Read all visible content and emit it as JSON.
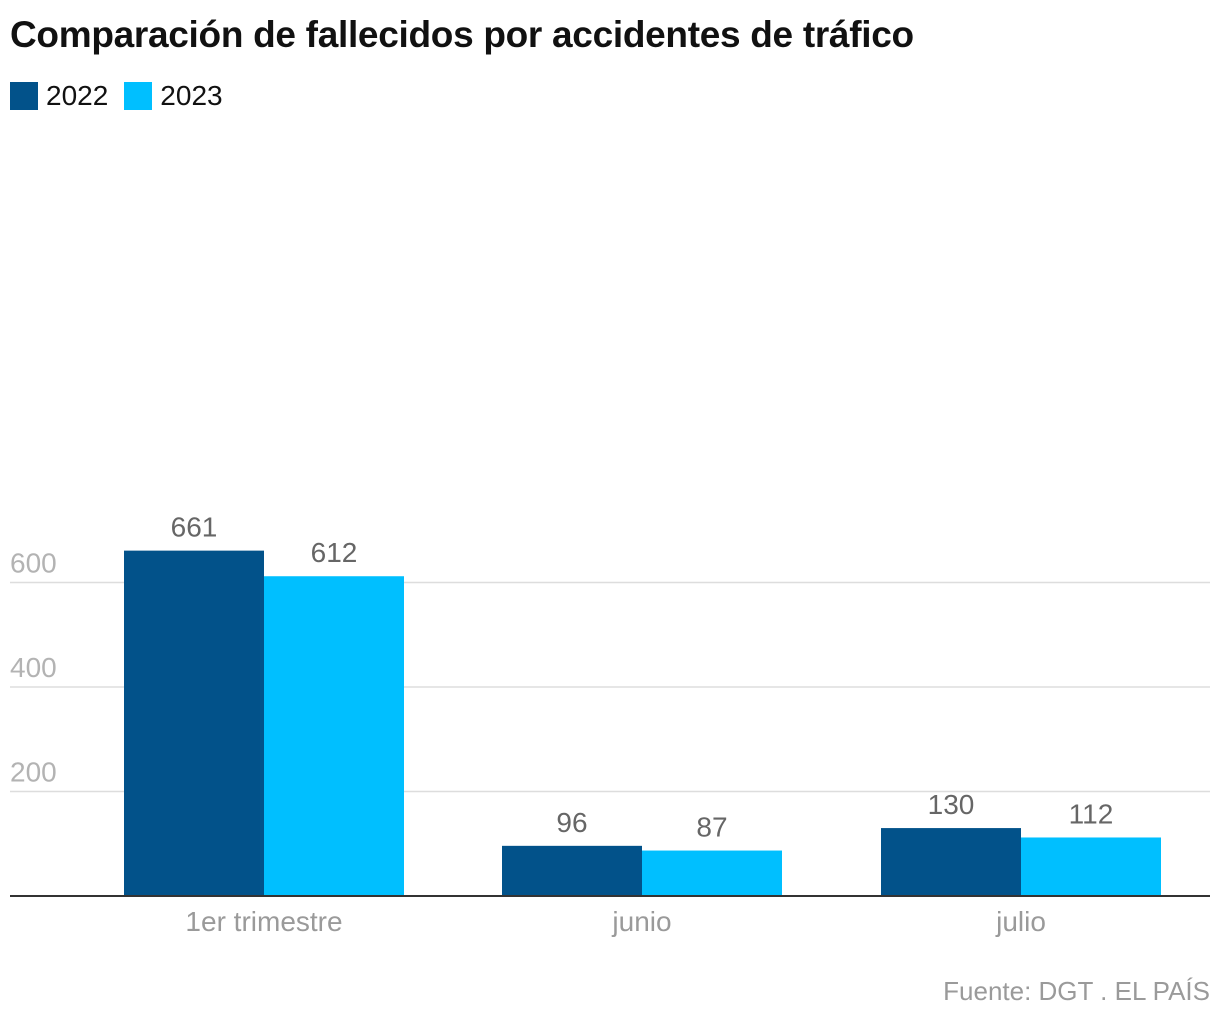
{
  "chart_data": {
    "type": "bar",
    "title": "Comparación de fallecidos por accidentes de tráfico",
    "categories": [
      "1er trimestre",
      "junio",
      "julio"
    ],
    "series": [
      {
        "name": "2022",
        "values": [
          661,
          96,
          130
        ],
        "color": "#02528a"
      },
      {
        "name": "2023",
        "values": [
          612,
          87,
          112
        ],
        "color": "#00bfff"
      }
    ],
    "yticks": [
      200,
      400,
      600
    ],
    "ylim": [
      0,
      700
    ],
    "grid": true,
    "legend_position": "top-left",
    "data_labels": true
  },
  "source": "Fuente: DGT . EL PAÍS"
}
